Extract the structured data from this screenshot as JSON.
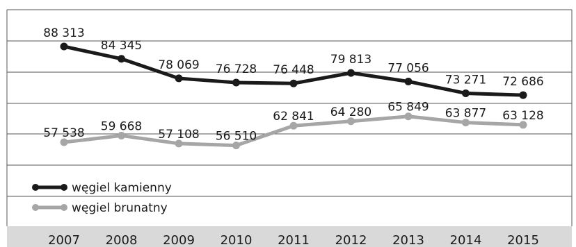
{
  "chart_data": {
    "type": "line",
    "title": "",
    "xlabel": "",
    "ylabel": "",
    "categories": [
      "2007",
      "2008",
      "2009",
      "2010",
      "2011",
      "2012",
      "2013",
      "2014",
      "2015"
    ],
    "ylim": [
      40000,
      100000
    ],
    "grid": true,
    "legend_position": "bottom-left",
    "series": [
      {
        "name": "węgiel kamienny",
        "color": "#1a1a1a",
        "values": [
          88313,
          84345,
          78069,
          76728,
          76448,
          79813,
          77056,
          73271,
          72686
        ],
        "labels": [
          "88 313",
          "84 345",
          "78 069",
          "76 728",
          "76 448",
          "79 813",
          "77 056",
          "73 271",
          "72 686"
        ]
      },
      {
        "name": "węgiel brunatny",
        "color": "#a6a6a6",
        "values": [
          57538,
          59668,
          57108,
          56510,
          62841,
          64280,
          65849,
          63877,
          63128
        ],
        "labels": [
          "57 538",
          "59 668",
          "57 108",
          "56 510",
          "62 841",
          "64 280",
          "65 849",
          "63 877",
          "63 128"
        ]
      }
    ]
  }
}
